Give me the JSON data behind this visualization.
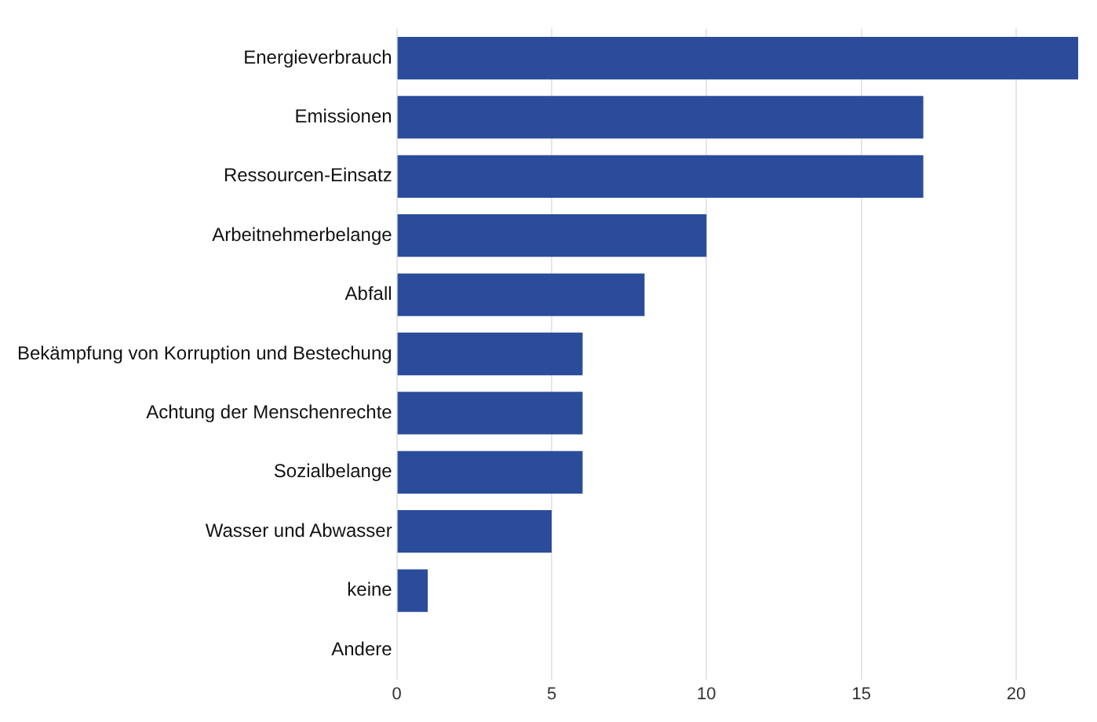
{
  "chart_data": {
    "type": "bar",
    "orientation": "horizontal",
    "categories": [
      "Energieverbrauch",
      "Emissionen",
      "Ressourcen-Einsatz",
      "Arbeitnehmerbelange",
      "Abfall",
      "Bekämpfung von Korruption und Bestechung",
      "Achtung der Menschenrechte",
      "Sozialbelange",
      "Wasser und Abwasser",
      "keine",
      "Andere"
    ],
    "values": [
      22,
      17,
      17,
      10,
      8,
      6,
      6,
      6,
      5,
      1,
      0
    ],
    "color": "#2b4c9b",
    "xlim": [
      0,
      22
    ],
    "xticks": [
      0,
      5,
      10,
      15,
      20
    ],
    "grid": "x",
    "legend": false
  }
}
